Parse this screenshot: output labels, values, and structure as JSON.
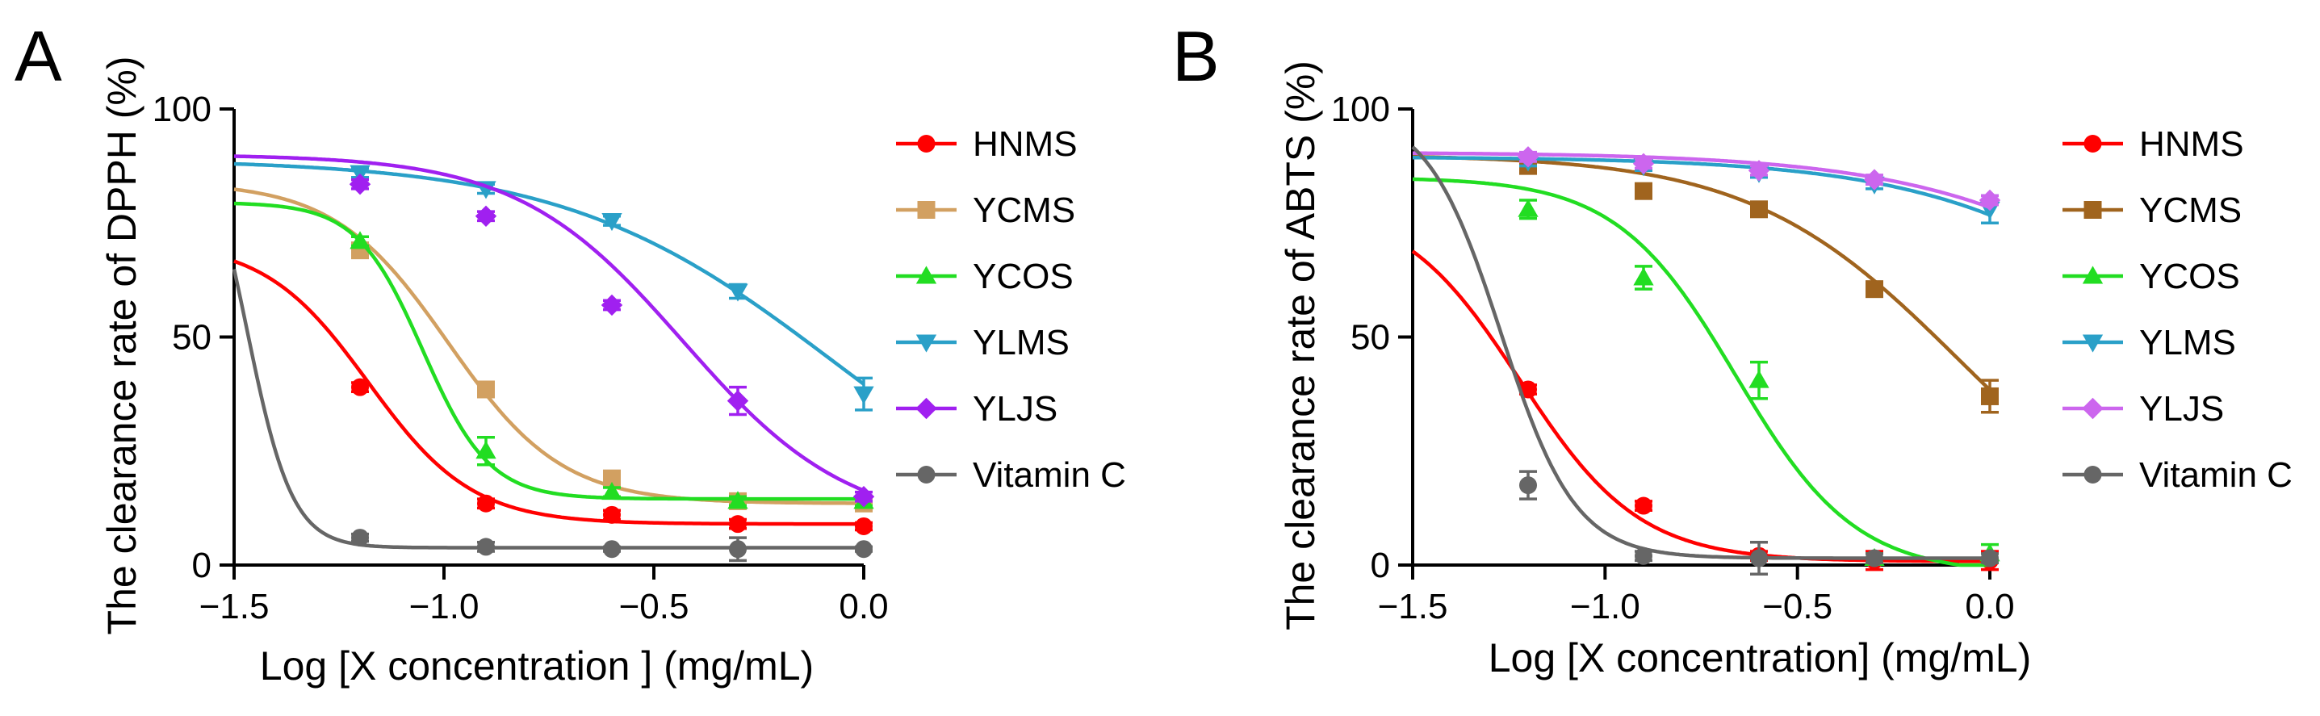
{
  "chart_data": [
    {
      "panel": "A",
      "type": "line",
      "xlabel": "Log [X concentration ] (mg/mL)",
      "ylabel": "The clearance rate of DPPH (%)",
      "xlim": [
        -1.5,
        0.0
      ],
      "ylim": [
        0,
        100
      ],
      "xticks": [
        -1.5,
        -1.0,
        -0.5,
        0.0
      ],
      "xtick_labels": [
        "−1.5",
        "−1.0",
        "−0.5",
        "0.0"
      ],
      "yticks": [
        0,
        50,
        100
      ],
      "ytick_labels": [
        "0",
        "50",
        "100"
      ],
      "legend_position": "right",
      "series": [
        {
          "name": "HNMS",
          "color": "#ff0000",
          "marker": "circle",
          "x": [
            -1.2,
            -0.9,
            -0.6,
            -0.3,
            0.0
          ],
          "y": [
            39,
            13.5,
            11,
            9,
            8.5
          ],
          "err": [
            1,
            1,
            1,
            1,
            0.8
          ],
          "fit": {
            "bottom": 9,
            "top": 71,
            "logec50": -1.18,
            "hill": -3.5
          }
        },
        {
          "name": "YCMS",
          "color": "#d2a061",
          "marker": "square",
          "x": [
            -1.2,
            -0.9,
            -0.6,
            -0.3,
            0.0
          ],
          "y": [
            69,
            38.5,
            19,
            14,
            13.5
          ],
          "err": [
            1.5,
            1.5,
            1,
            1,
            1
          ],
          "fit": {
            "bottom": 13.5,
            "top": 84,
            "logec50": -0.99,
            "hill": -3.2
          }
        },
        {
          "name": "YCOS",
          "color": "#22dd22",
          "marker": "triangle-up",
          "x": [
            -1.2,
            -0.9,
            -0.6,
            -0.3,
            0.0
          ],
          "y": [
            71,
            25,
            16,
            14,
            14
          ],
          "err": [
            1,
            3,
            1,
            1,
            1
          ],
          "fit": {
            "bottom": 14.5,
            "top": 79.5,
            "logec50": -1.05,
            "hill": -5.5
          }
        },
        {
          "name": "YLMS",
          "color": "#2aa0c8",
          "marker": "triangle-down",
          "x": [
            -1.2,
            -0.9,
            -0.6,
            -0.3,
            0.0
          ],
          "y": [
            86,
            82.5,
            75.5,
            60,
            37.5
          ],
          "err": [
            1,
            1,
            1,
            1.5,
            3.5
          ],
          "fit": {
            "bottom": 0,
            "top": 89,
            "logec50": -0.07,
            "hill": -1.35
          }
        },
        {
          "name": "YLJS",
          "color": "#a020f0",
          "marker": "diamond",
          "x": [
            -1.2,
            -0.9,
            -0.6,
            -0.3,
            0.0
          ],
          "y": [
            83.5,
            76.5,
            57,
            36,
            15
          ],
          "err": [
            1,
            1,
            1,
            3,
            1
          ],
          "fit": {
            "bottom": 8,
            "top": 90,
            "logec50": -0.43,
            "hill": -2.2
          }
        },
        {
          "name": "Vitamin C",
          "color": "#666666",
          "marker": "circle",
          "x": [
            -1.2,
            -0.9,
            -0.6,
            -0.3,
            0.0
          ],
          "y": [
            6,
            4,
            3.5,
            3.5,
            3.5
          ],
          "err": [
            0.8,
            1,
            0.5,
            2.5,
            0.5
          ],
          "fit": {
            "bottom": 3.8,
            "top": 100,
            "logec50": -1.47,
            "hill": -8
          }
        }
      ]
    },
    {
      "panel": "B",
      "type": "line",
      "xlabel": "Log [X concentration] (mg/mL)",
      "ylabel": "The clearance rate of ABTS (%)",
      "xlim": [
        -1.5,
        0.0
      ],
      "ylim": [
        0,
        100
      ],
      "xticks": [
        -1.5,
        -1.0,
        -0.5,
        0.0
      ],
      "xtick_labels": [
        "−1.5",
        "−1.0",
        "−0.5",
        "0.0"
      ],
      "yticks": [
        0,
        50,
        100
      ],
      "ytick_labels": [
        "0",
        "50",
        "100"
      ],
      "legend_position": "right",
      "series": [
        {
          "name": "HNMS",
          "color": "#ff0000",
          "marker": "circle",
          "x": [
            -1.2,
            -0.9,
            -0.6,
            -0.3,
            0.0
          ],
          "y": [
            38.5,
            13,
            2,
            1,
            1
          ],
          "err": [
            1,
            1,
            1,
            2,
            2
          ],
          "fit": {
            "bottom": 0.8,
            "top": 80,
            "logec50": -1.22,
            "hill": -2.8
          }
        },
        {
          "name": "YCMS",
          "color": "#a0641e",
          "marker": "square",
          "x": [
            -1.2,
            -0.9,
            -0.6,
            -0.3,
            0.0
          ],
          "y": [
            87.5,
            82,
            78,
            60.5,
            37
          ],
          "err": [
            1,
            1.5,
            1,
            1,
            3.5
          ],
          "fit": {
            "bottom": 0,
            "top": 90,
            "logec50": -0.08,
            "hill": -1.6
          }
        },
        {
          "name": "YCOS",
          "color": "#22dd22",
          "marker": "triangle-up",
          "x": [
            -1.2,
            -0.9,
            -0.6,
            -0.3,
            0.0
          ],
          "y": [
            78,
            63,
            40.5,
            1.5,
            2.5
          ],
          "err": [
            2,
            2.5,
            4,
            1,
            2
          ],
          "fit": {
            "bottom": -2,
            "top": 85,
            "logec50": -0.66,
            "hill": -2.8
          }
        },
        {
          "name": "YLMS",
          "color": "#2aa0c8",
          "marker": "triangle-down",
          "x": [
            -1.2,
            -0.9,
            -0.6,
            -0.3,
            0.0
          ],
          "y": [
            88.5,
            87.5,
            86,
            83.5,
            78
          ],
          "err": [
            1,
            1,
            1,
            1,
            3
          ],
          "fit": {
            "bottom": 0,
            "top": 89.5,
            "logec50": 0.6,
            "hill": -1.3
          }
        },
        {
          "name": "YLJS",
          "color": "#cc66ee",
          "marker": "diamond",
          "x": [
            -1.2,
            -0.9,
            -0.6,
            -0.3,
            0.0
          ],
          "y": [
            89.5,
            88,
            86.5,
            84.5,
            80
          ],
          "err": [
            1,
            1,
            1,
            1,
            1
          ],
          "fit": {
            "bottom": 0,
            "top": 90.5,
            "logec50": 0.65,
            "hill": -1.25
          }
        },
        {
          "name": "Vitamin C",
          "color": "#666666",
          "marker": "circle",
          "x": [
            -1.2,
            -0.9,
            -0.6,
            -0.3,
            0.0
          ],
          "y": [
            17.5,
            2,
            1.5,
            1.5,
            1.5
          ],
          "err": [
            3,
            1,
            3.5,
            1,
            1
          ],
          "fit": {
            "bottom": 1.5,
            "top": 100,
            "logec50": -1.27,
            "hill": -4.5
          }
        }
      ]
    }
  ]
}
